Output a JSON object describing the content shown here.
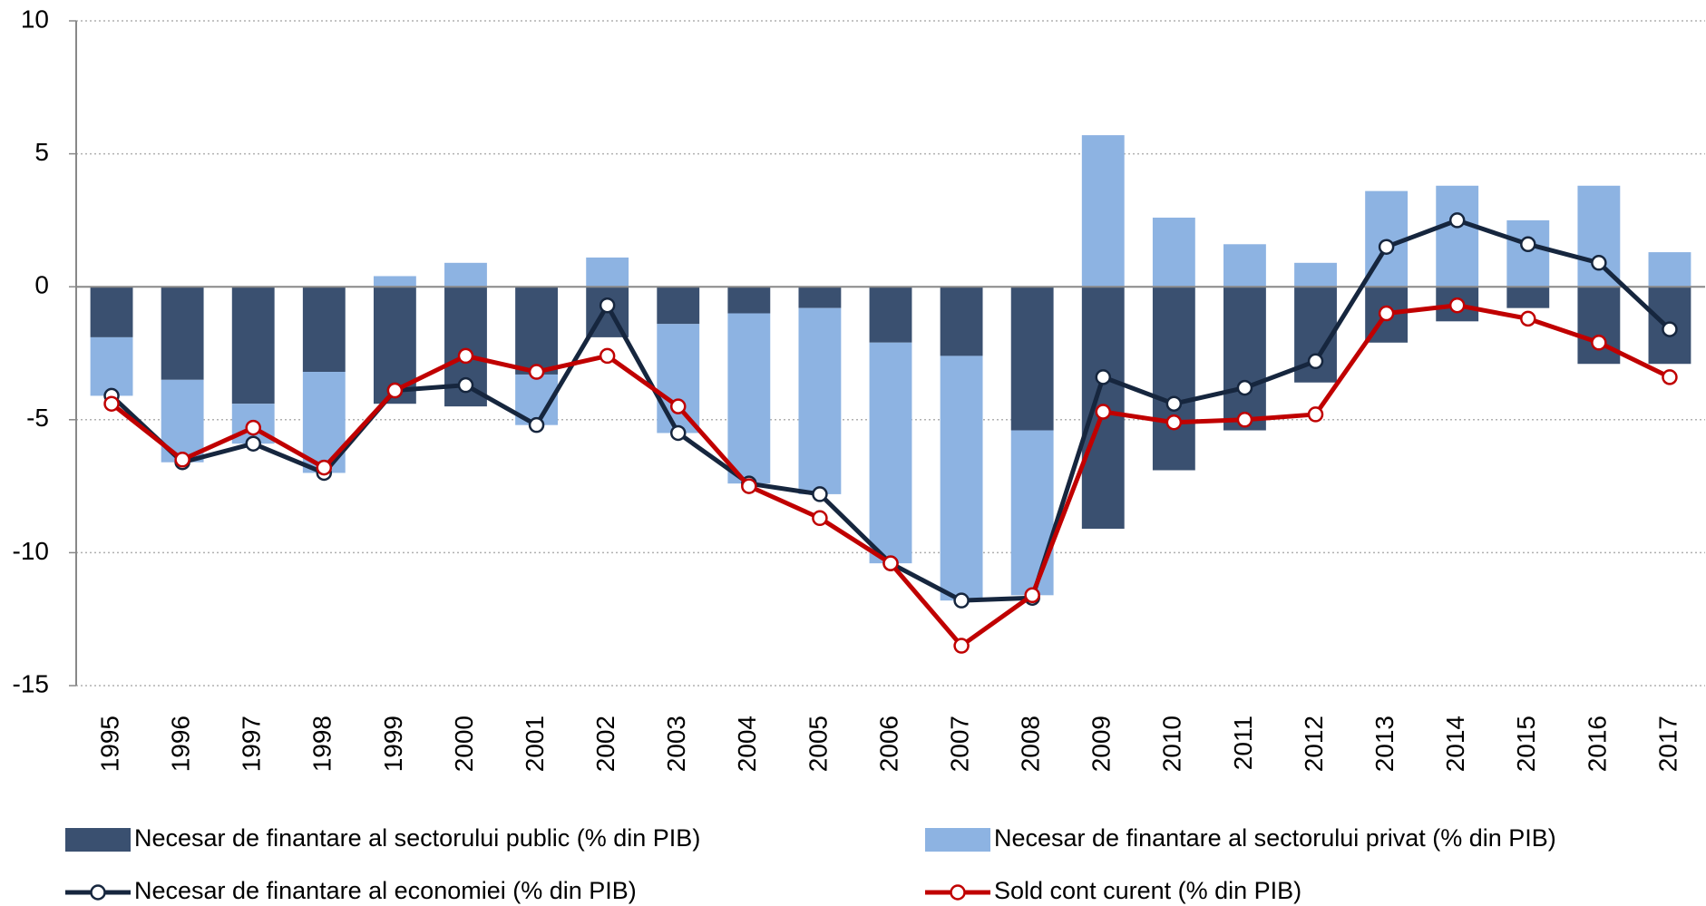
{
  "chart_data": {
    "type": "bar-line",
    "categories": [
      "1995",
      "1996",
      "1997",
      "1998",
      "1999",
      "2000",
      "2001",
      "2002",
      "2003",
      "2004",
      "2005",
      "2006",
      "2007",
      "2008",
      "2009",
      "2010",
      "2011",
      "2012",
      "2013",
      "2014",
      "2015",
      "2016",
      "2017"
    ],
    "series": [
      {
        "name": "Necesar de finantare al sectorului public (% din PIB)",
        "type": "bar",
        "color": "#3a5070",
        "values": [
          -1.9,
          -3.5,
          -4.4,
          -3.2,
          -4.4,
          -4.5,
          -3.3,
          -1.9,
          -1.4,
          -1.0,
          -0.8,
          -2.1,
          -2.6,
          -5.4,
          -9.1,
          -6.9,
          -5.4,
          -3.6,
          -2.1,
          -1.3,
          -0.8,
          -2.9,
          -2.9
        ]
      },
      {
        "name": "Necesar de finantare al sectorului privat (% din PIB)",
        "type": "bar",
        "color": "#8db3e2",
        "values": [
          -2.2,
          -3.1,
          -1.5,
          -3.8,
          0.4,
          0.9,
          -1.9,
          1.1,
          -4.1,
          -6.4,
          -7.0,
          -8.3,
          -9.2,
          -6.2,
          5.7,
          2.6,
          1.6,
          0.9,
          3.6,
          3.8,
          2.5,
          3.8,
          1.3
        ]
      },
      {
        "name": "Necesar de finantare al economiei (% din PIB)",
        "type": "line",
        "color": "#16263e",
        "values": [
          -4.1,
          -6.6,
          -5.9,
          -7.0,
          -3.9,
          -3.7,
          -5.2,
          -0.7,
          -5.5,
          -7.4,
          -7.8,
          -10.4,
          -11.8,
          -11.7,
          -3.4,
          -4.4,
          -3.8,
          -2.8,
          1.5,
          2.5,
          1.6,
          0.9,
          -1.6
        ]
      },
      {
        "name": "Sold cont curent (% din PIB)",
        "type": "line",
        "color": "#c00000",
        "values": [
          -4.4,
          -6.5,
          -5.3,
          -6.8,
          -3.9,
          -2.6,
          -3.2,
          -2.6,
          -4.5,
          -7.5,
          -8.7,
          -10.4,
          -13.5,
          -11.6,
          -4.7,
          -5.1,
          -5.0,
          -4.8,
          -1.0,
          -0.7,
          -1.2,
          -2.1,
          -3.4
        ]
      }
    ],
    "ylim": [
      -15,
      10
    ],
    "yticks": [
      -15,
      -10,
      -5,
      0,
      5,
      10
    ],
    "grid": true,
    "legend": "bottom"
  }
}
